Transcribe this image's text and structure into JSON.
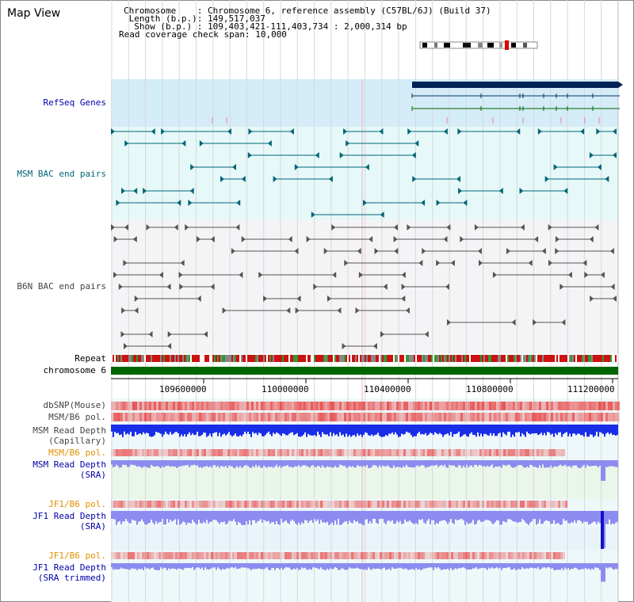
{
  "view_title": "Map View",
  "info": {
    "chromosome_key": "Chromosome    ",
    "chromosome_val": ": Chromosome 6, reference assembly (C57BL/6J) (Build 37)",
    "length_key": " Length (b.p.)",
    "length_val": ": 149,517,037",
    "show_key": "  Show (b.p.) ",
    "show_val": ": 109,403,421-111,403,734 : 2,000,314 bp",
    "coverage_key": "Read coverage check span",
    "coverage_val": ": 10,000"
  },
  "tracks": {
    "refseq": "RefSeq Genes",
    "msm_bac": "MSM BAC end pairs",
    "b6n_bac": "B6N BAC end pairs",
    "repeat": "Repeat",
    "chromosome": "chromosome 6",
    "dbsnp": "dbSNP(Mouse)",
    "msm_b6_pol": "MSM/B6 pol.",
    "msm_depth_cap_1": "MSM Read Depth",
    "msm_depth_cap_2": "(Capillary)",
    "msm_b6_pol_2": "MSM/B6 pol.",
    "msm_depth_sra_1": "MSM Read Depth",
    "msm_depth_sra_2": "(SRA)",
    "jf1_b6_pol": "JF1/B6 pol.",
    "jf1_depth_sra_1": "JF1 Read Depth",
    "jf1_depth_sra_2": "(SRA)",
    "jf1_b6_pol_2": "JF1/B6 pol.",
    "jf1_depth_trim_1": "JF1 Read Depth",
    "jf1_depth_trim_2": "(SRA trimmed)"
  },
  "axis_ticks": [
    "109600000",
    "110000000",
    "110400000",
    "110800000",
    "111200000"
  ],
  "colors": {
    "refseq_bg": "#d4ecf8",
    "msm_bg": "#e6f8f8",
    "b6n_bg": "#f4f4f6",
    "chromosome_bar": "#006600",
    "gene_bar": "#002255",
    "teal": "#006677",
    "gray_pair": "#555555",
    "depth_blue": "#1a2ee8",
    "sra_blue": "#8c8cf0",
    "pol_red": "#e83030"
  }
}
